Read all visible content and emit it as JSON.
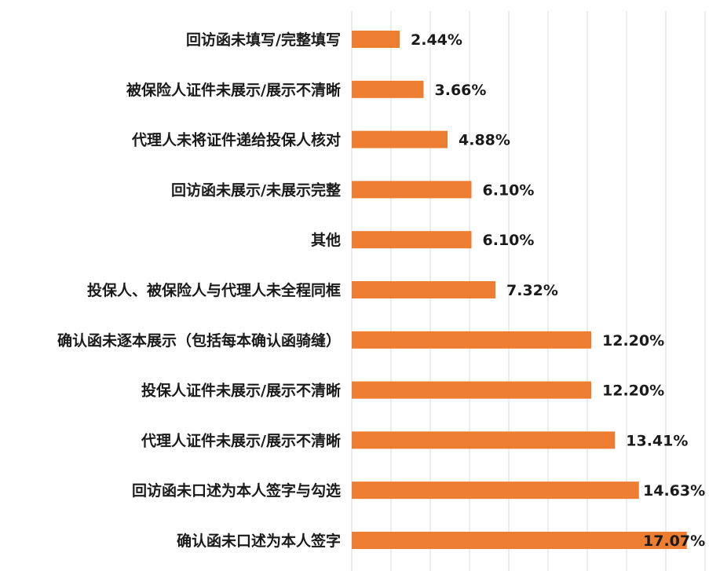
{
  "chart_data": {
    "type": "bar",
    "orientation": "horizontal",
    "categories": [
      "回访函未填写/完整填写",
      "被保险人证件未展示/展示不清晰",
      "代理人未将证件递给投保人核对",
      "回访函未展示/未展示完整",
      "其他",
      "投保人、被保险人与代理人未全程同框",
      "确认函未逐本展示（包括每本确认函骑缝）",
      "投保人证件未展示/展示不清晰",
      "代理人证件未展示/展示不清晰",
      "回访函未口述为本人签字与勾选",
      "确认函未口述为本人签字"
    ],
    "values": [
      2.44,
      3.66,
      4.88,
      6.1,
      6.1,
      7.32,
      12.2,
      12.2,
      13.41,
      14.63,
      17.07
    ],
    "value_labels": [
      "2.44%",
      "3.66%",
      "4.88%",
      "6.10%",
      "6.10%",
      "7.32%",
      "12.20%",
      "12.20%",
      "13.41%",
      "14.63%",
      "17.07%"
    ],
    "xlim": [
      0,
      18
    ],
    "grid": true,
    "bar_color": "#ED7D31",
    "grid_color": "#D9D9D9"
  }
}
